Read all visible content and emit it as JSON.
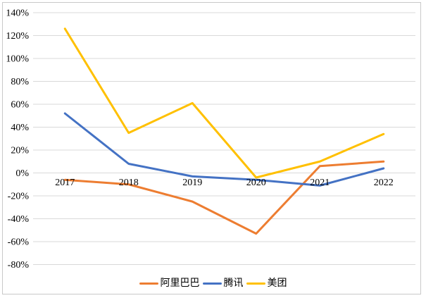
{
  "chart_data": {
    "type": "line",
    "categories": [
      "2017",
      "2018",
      "2019",
      "2020",
      "2021",
      "2022"
    ],
    "series": [
      {
        "key": "alibaba",
        "name": "阿里巴巴",
        "color": "#ED7D31",
        "values": [
          -6,
          -10,
          -25,
          -53,
          6,
          10
        ]
      },
      {
        "key": "tencent",
        "name": "腾讯",
        "color": "#4472C4",
        "values": [
          52,
          8,
          -3,
          -6,
          -11,
          4
        ]
      },
      {
        "key": "meituan",
        "name": "美团",
        "color": "#FFC000",
        "values": [
          126,
          35,
          61,
          -4,
          10,
          34
        ]
      }
    ],
    "unit": "%",
    "ylim": [
      -80,
      140
    ],
    "y_tick_step": 20,
    "y_tick_labels": [
      "140%",
      "120%",
      "100%",
      "80%",
      "60%",
      "40%",
      "20%",
      "0%",
      "-20%",
      "-40%",
      "-60%",
      "-80%"
    ],
    "x_tick_labels": [
      "2017",
      "2018",
      "2019",
      "2020",
      "2021",
      "2022"
    ],
    "grid": "horizontal",
    "gridline_color": "#D9D9D9",
    "axis_text_color": "#000000",
    "legend_position": "bottom",
    "legend_entries": [
      "阿里巴巴",
      "腾讯",
      "美团"
    ]
  }
}
